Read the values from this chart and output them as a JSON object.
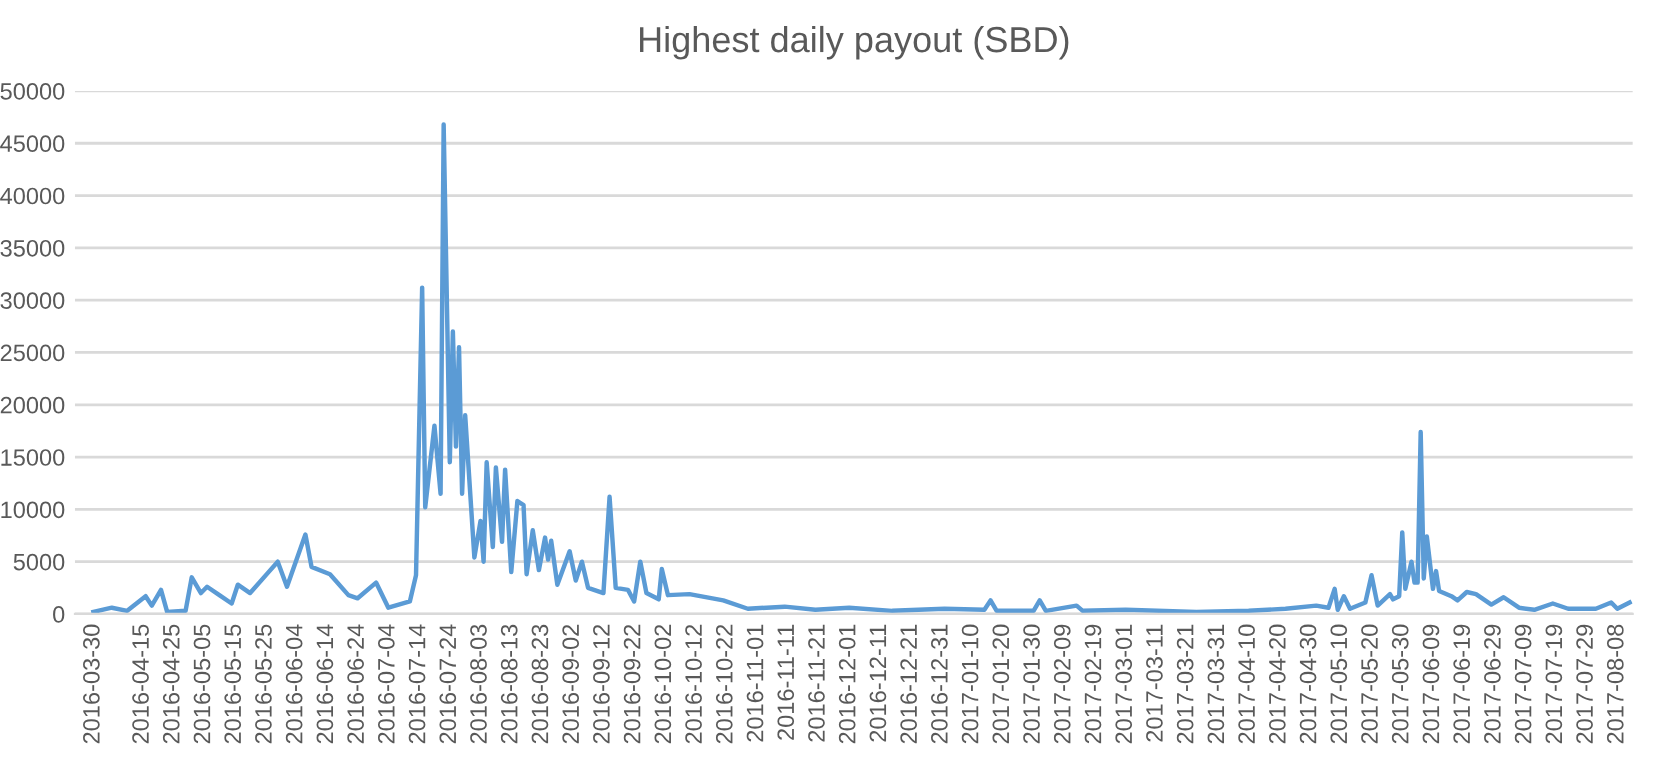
{
  "chart_data": {
    "type": "line",
    "title": "Highest daily payout (SBD)",
    "x": [
      "2016-03-30",
      "2016-04-05",
      "2016-04-10",
      "2016-04-16",
      "2016-04-18",
      "2016-04-21",
      "2016-04-23",
      "2016-04-29",
      "2016-05-01",
      "2016-05-04",
      "2016-05-06",
      "2016-05-10",
      "2016-05-14",
      "2016-05-16",
      "2016-05-20",
      "2016-05-26",
      "2016-05-29",
      "2016-06-01",
      "2016-06-07",
      "2016-06-09",
      "2016-06-15",
      "2016-06-21",
      "2016-06-24",
      "2016-06-30",
      "2016-07-04",
      "2016-07-11",
      "2016-07-13",
      "2016-07-15",
      "2016-07-16",
      "2016-07-19",
      "2016-07-21",
      "2016-07-22",
      "2016-07-24",
      "2016-07-25",
      "2016-07-26",
      "2016-07-27",
      "2016-07-28",
      "2016-07-29",
      "2016-08-01",
      "2016-08-03",
      "2016-08-04",
      "2016-08-05",
      "2016-08-07",
      "2016-08-08",
      "2016-08-10",
      "2016-08-11",
      "2016-08-13",
      "2016-08-15",
      "2016-08-17",
      "2016-08-18",
      "2016-08-20",
      "2016-08-22",
      "2016-08-24",
      "2016-08-25",
      "2016-08-26",
      "2016-08-28",
      "2016-09-01",
      "2016-09-03",
      "2016-09-05",
      "2016-09-07",
      "2016-09-12",
      "2016-09-14",
      "2016-09-16",
      "2016-09-20",
      "2016-09-22",
      "2016-09-24",
      "2016-09-26",
      "2016-09-30",
      "2016-10-01",
      "2016-10-03",
      "2016-10-10",
      "2016-10-21",
      "2016-10-29",
      "2016-11-10",
      "2016-11-20",
      "2016-12-01",
      "2016-12-15",
      "2017-01-01",
      "2017-01-14",
      "2017-01-16",
      "2017-01-18",
      "2017-01-30",
      "2017-02-01",
      "2017-02-03",
      "2017-02-13",
      "2017-02-15",
      "2017-03-01",
      "2017-03-24",
      "2017-04-10",
      "2017-04-22",
      "2017-05-02",
      "2017-05-06",
      "2017-05-08",
      "2017-05-09",
      "2017-05-11",
      "2017-05-13",
      "2017-05-18",
      "2017-05-20",
      "2017-05-22",
      "2017-05-26",
      "2017-05-27",
      "2017-05-29",
      "2017-05-30",
      "2017-05-31",
      "2017-06-02",
      "2017-06-03",
      "2017-06-04",
      "2017-06-05",
      "2017-06-06",
      "2017-06-07",
      "2017-06-09",
      "2017-06-10",
      "2017-06-11",
      "2017-06-15",
      "2017-06-17",
      "2017-06-20",
      "2017-06-23",
      "2017-06-28",
      "2017-07-02",
      "2017-07-07",
      "2017-07-12",
      "2017-07-18",
      "2017-07-23",
      "2017-08-01",
      "2017-08-06",
      "2017-08-08",
      "2017-08-12"
    ],
    "series": [
      {
        "color": "#5b9bd5",
        "values": [
          200,
          600,
          300,
          1700,
          800,
          2300,
          200,
          300,
          3500,
          2000,
          2600,
          1800,
          1000,
          2800,
          2000,
          4000,
          5000,
          2600,
          7600,
          4500,
          3800,
          1800,
          1500,
          3000,
          600,
          1200,
          3700,
          31200,
          10200,
          18000,
          11500,
          46800,
          14500,
          27000,
          16000,
          25500,
          11500,
          19000,
          5400,
          8900,
          5000,
          14500,
          6400,
          14000,
          6900,
          13800,
          4000,
          10800,
          10400,
          3800,
          8000,
          4200,
          7300,
          5200,
          7000,
          2800,
          6000,
          3200,
          5000,
          2500,
          2000,
          11200,
          2500,
          2300,
          1200,
          5000,
          2000,
          1400,
          4300,
          1800,
          1900,
          1300,
          500,
          700,
          400,
          600,
          300,
          500,
          400,
          1300,
          300,
          300,
          1300,
          300,
          800,
          300,
          400,
          200,
          300,
          500,
          800,
          600,
          2400,
          400,
          1700,
          500,
          1100,
          3700,
          800,
          1900,
          1400,
          1700,
          7800,
          2400,
          5000,
          3000,
          3000,
          17400,
          3400,
          7400,
          2400,
          4100,
          2200,
          1700,
          1300,
          2100,
          1900,
          900,
          1600,
          600,
          400,
          1000,
          500,
          500,
          1100,
          500,
          1100
        ]
      }
    ],
    "xlim": [
      "2016-03-24",
      "2017-08-13"
    ],
    "xticks": [
      "2016-03-30",
      "2016-04-15",
      "2016-04-25",
      "2016-05-05",
      "2016-05-15",
      "2016-05-25",
      "2016-06-04",
      "2016-06-14",
      "2016-06-24",
      "2016-07-04",
      "2016-07-14",
      "2016-07-24",
      "2016-08-03",
      "2016-08-13",
      "2016-08-23",
      "2016-09-02",
      "2016-09-12",
      "2016-09-22",
      "2016-10-02",
      "2016-10-12",
      "2016-10-22",
      "2016-11-01",
      "2016-11-11",
      "2016-11-21",
      "2016-12-01",
      "2016-12-11",
      "2016-12-21",
      "2016-12-31",
      "2017-01-10",
      "2017-01-20",
      "2017-01-30",
      "2017-02-09",
      "2017-02-19",
      "2017-03-01",
      "2017-03-11",
      "2017-03-21",
      "2017-03-31",
      "2017-04-10",
      "2017-04-20",
      "2017-04-30",
      "2017-05-10",
      "2017-05-20",
      "2017-05-30",
      "2017-06-09",
      "2017-06-19",
      "2017-06-29",
      "2017-07-09",
      "2017-07-19",
      "2017-07-29",
      "2017-08-08"
    ],
    "ylim": [
      0,
      50000
    ],
    "yticks": [
      0,
      5000,
      10000,
      15000,
      20000,
      25000,
      30000,
      35000,
      40000,
      45000,
      50000
    ],
    "grid": "y",
    "legend": false,
    "marker": "none",
    "line_style": "solid"
  }
}
